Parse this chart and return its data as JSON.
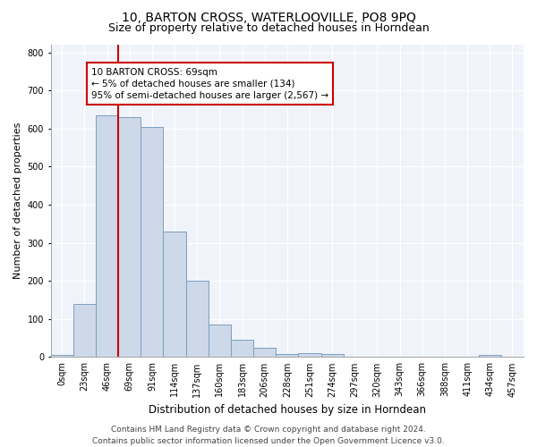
{
  "title": "10, BARTON CROSS, WATERLOOVILLE, PO8 9PQ",
  "subtitle": "Size of property relative to detached houses in Horndean",
  "xlabel": "Distribution of detached houses by size in Horndean",
  "ylabel": "Number of detached properties",
  "bar_labels": [
    "0sqm",
    "23sqm",
    "46sqm",
    "69sqm",
    "91sqm",
    "114sqm",
    "137sqm",
    "160sqm",
    "183sqm",
    "206sqm",
    "228sqm",
    "251sqm",
    "274sqm",
    "297sqm",
    "320sqm",
    "343sqm",
    "366sqm",
    "388sqm",
    "411sqm",
    "434sqm",
    "457sqm"
  ],
  "bar_values": [
    5,
    140,
    635,
    630,
    605,
    330,
    200,
    85,
    45,
    25,
    8,
    10,
    8,
    0,
    0,
    0,
    0,
    0,
    0,
    5,
    0
  ],
  "bar_color": "#cdd8e8",
  "bar_edge_color": "#7a9fc0",
  "ylim": [
    0,
    820
  ],
  "yticks": [
    0,
    100,
    200,
    300,
    400,
    500,
    600,
    700,
    800
  ],
  "vline_index": 3,
  "vline_color": "#cc0000",
  "annotation_text": "10 BARTON CROSS: 69sqm\n← 5% of detached houses are smaller (134)\n95% of semi-detached houses are larger (2,567) →",
  "annotation_box_color": "#cc0000",
  "footnote": "Contains HM Land Registry data © Crown copyright and database right 2024.\nContains public sector information licensed under the Open Government Licence v3.0.",
  "title_fontsize": 10,
  "subtitle_fontsize": 9,
  "xlabel_fontsize": 8.5,
  "ylabel_fontsize": 8,
  "tick_fontsize": 7,
  "annot_fontsize": 7.5,
  "footnote_fontsize": 6.5,
  "bg_color": "#f0f4fa"
}
